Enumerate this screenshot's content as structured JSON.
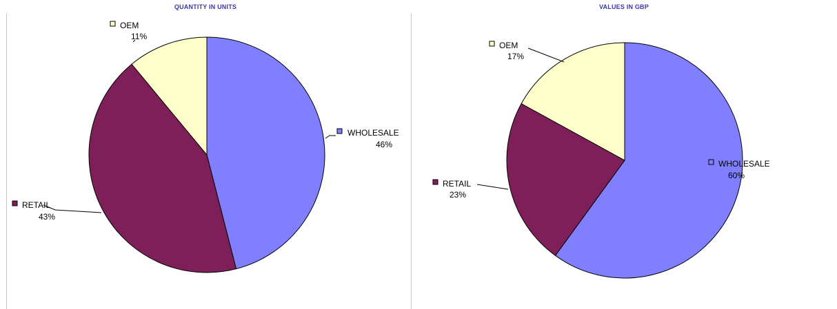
{
  "chart_data": [
    {
      "type": "pie",
      "title": "QUANTITY IN UNITS",
      "slices": [
        {
          "label": "WHOLESALE",
          "value": 46,
          "value_label": "46%",
          "color": "#8080ff"
        },
        {
          "label": "RETAIL",
          "value": 43,
          "value_label": "43%",
          "color": "#7f1f5a"
        },
        {
          "label": "OEM",
          "value": 11,
          "value_label": "11%",
          "color": "#ffffcc"
        }
      ],
      "legend": "none",
      "data_labels": "outside with leader lines"
    },
    {
      "type": "pie",
      "title": "VALUES IN GBP",
      "slices": [
        {
          "label": "WHOLESALE",
          "value": 60,
          "value_label": "60%",
          "color": "#8080ff"
        },
        {
          "label": "RETAIL",
          "value": 23,
          "value_label": "23%",
          "color": "#7f1f5a"
        },
        {
          "label": "OEM",
          "value": 17,
          "value_label": "17%",
          "color": "#ffffcc"
        }
      ],
      "legend": "none",
      "data_labels": "outside with leader lines"
    }
  ]
}
